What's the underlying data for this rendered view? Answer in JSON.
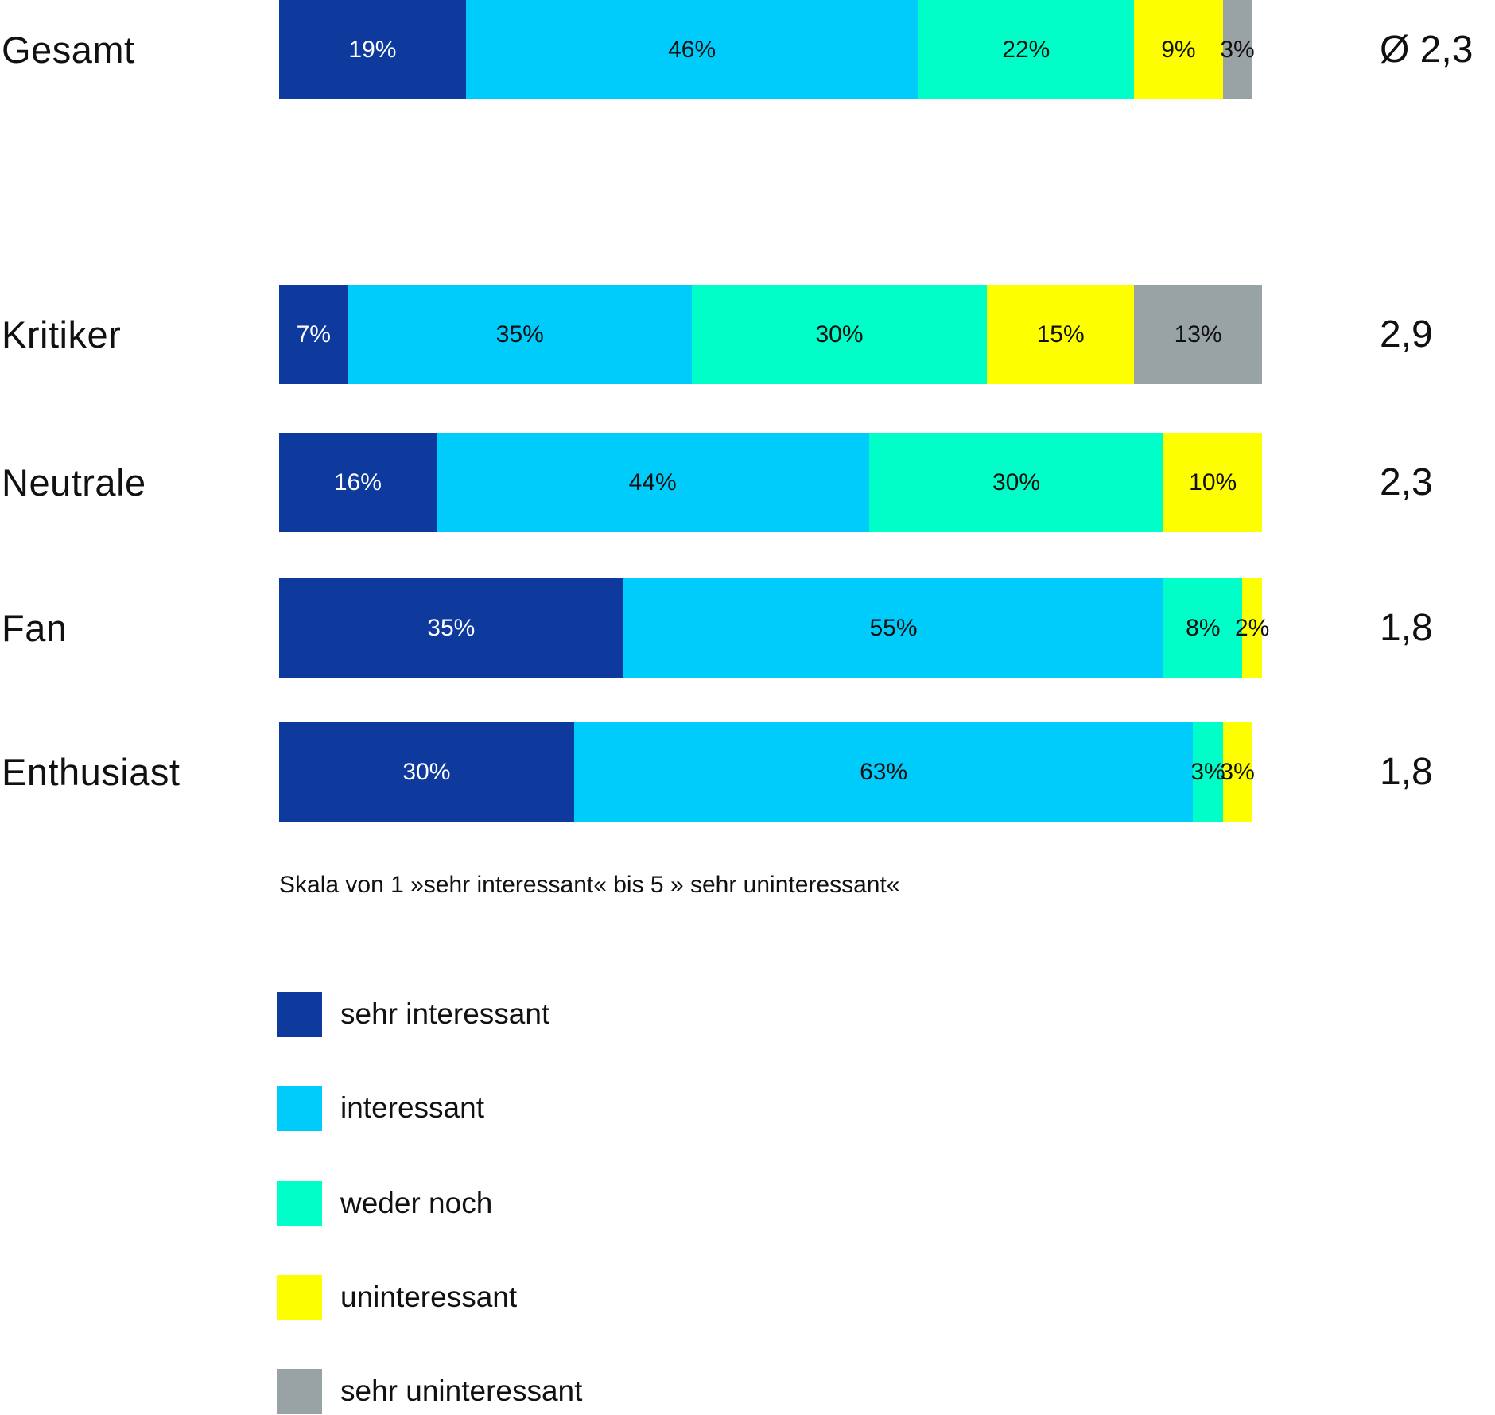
{
  "chart_data": {
    "type": "bar",
    "stacked": true,
    "orientation": "horizontal",
    "unit": "%",
    "xlim": [
      0,
      100
    ],
    "grid": false,
    "legend_position": "bottom-left",
    "categories": [
      "Gesamt",
      "Kritiker",
      "Neutrale",
      "Fan",
      "Enthusiast"
    ],
    "series": [
      {
        "name": "sehr interessant",
        "color": "#0E3A9E",
        "values": [
          19,
          7,
          16,
          35,
          30
        ]
      },
      {
        "name": "interessant",
        "color": "#00CCFB",
        "values": [
          46,
          35,
          44,
          55,
          63
        ]
      },
      {
        "name": "weder noch",
        "color": "#00FEC8",
        "values": [
          22,
          30,
          30,
          8,
          3
        ]
      },
      {
        "name": "uninteressant",
        "color": "#FDFF00",
        "values": [
          9,
          15,
          10,
          2,
          3
        ]
      },
      {
        "name": "sehr uninteressant",
        "color": "#99A2A5",
        "values": [
          3,
          13,
          0,
          0,
          0
        ]
      }
    ],
    "averages": [
      "Ø 2,3",
      "2,9",
      "2,3",
      "1,8",
      "1,8"
    ],
    "note": "Skala von 1 »sehr interessant« bis 5 » sehr uninteressant«",
    "legend": [
      "sehr interessant",
      "interessant",
      "weder noch",
      "uninteressant",
      "sehr uninteressant"
    ],
    "label_suffix": "%",
    "text_color": "#111111",
    "label_color_on_dark": "#ffffff"
  }
}
